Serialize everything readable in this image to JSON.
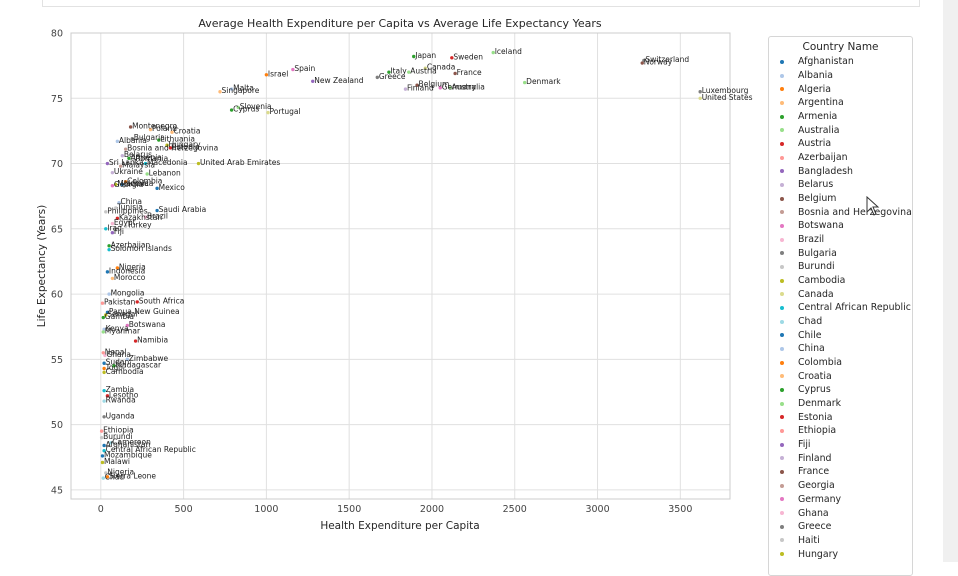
{
  "chart_data": {
    "type": "scatter",
    "title": "Average Health Expenditure per Capita vs Average Life Expectancy Years",
    "xlabel": "Health Expenditure per Capita",
    "ylabel": "Life Expectancy (Years)",
    "xlim": [
      -180,
      3800
    ],
    "ylim": [
      44.3,
      80
    ],
    "xticks": [
      0,
      500,
      1000,
      1500,
      2000,
      2500,
      3000,
      3500
    ],
    "yticks": [
      45,
      50,
      55,
      60,
      65,
      70,
      75,
      80
    ],
    "grid": true,
    "legend_title": "Country Name",
    "legend_position": "right",
    "legend": [
      {
        "name": "Afghanistan",
        "color": "#1f77b4"
      },
      {
        "name": "Albania",
        "color": "#aec7e8"
      },
      {
        "name": "Algeria",
        "color": "#ff7f0e"
      },
      {
        "name": "Argentina",
        "color": "#ffbb78"
      },
      {
        "name": "Armenia",
        "color": "#2ca02c"
      },
      {
        "name": "Australia",
        "color": "#98df8a"
      },
      {
        "name": "Austria",
        "color": "#d62728"
      },
      {
        "name": "Azerbaijan",
        "color": "#ff9896"
      },
      {
        "name": "Bangladesh",
        "color": "#9467bd"
      },
      {
        "name": "Belarus",
        "color": "#c5b0d5"
      },
      {
        "name": "Belgium",
        "color": "#8c564b"
      },
      {
        "name": "Bosnia and Herzegovina",
        "color": "#c49c94"
      },
      {
        "name": "Botswana",
        "color": "#e377c2"
      },
      {
        "name": "Brazil",
        "color": "#f7b6d2"
      },
      {
        "name": "Bulgaria",
        "color": "#7f7f7f"
      },
      {
        "name": "Burundi",
        "color": "#c7c7c7"
      },
      {
        "name": "Cambodia",
        "color": "#bcbd22"
      },
      {
        "name": "Canada",
        "color": "#dbdb8d"
      },
      {
        "name": "Central African Republic",
        "color": "#17becf"
      },
      {
        "name": "Chad",
        "color": "#9edae5"
      },
      {
        "name": "Chile",
        "color": "#1f77b4"
      },
      {
        "name": "China",
        "color": "#aec7e8"
      },
      {
        "name": "Colombia",
        "color": "#ff7f0e"
      },
      {
        "name": "Croatia",
        "color": "#ffbb78"
      },
      {
        "name": "Cyprus",
        "color": "#2ca02c"
      },
      {
        "name": "Denmark",
        "color": "#98df8a"
      },
      {
        "name": "Estonia",
        "color": "#d62728"
      },
      {
        "name": "Ethiopia",
        "color": "#ff9896"
      },
      {
        "name": "Fiji",
        "color": "#9467bd"
      },
      {
        "name": "Finland",
        "color": "#c5b0d5"
      },
      {
        "name": "France",
        "color": "#8c564b"
      },
      {
        "name": "Georgia",
        "color": "#c49c94"
      },
      {
        "name": "Germany",
        "color": "#e377c2"
      },
      {
        "name": "Ghana",
        "color": "#f7b6d2"
      },
      {
        "name": "Greece",
        "color": "#7f7f7f"
      },
      {
        "name": "Haiti",
        "color": "#c7c7c7"
      },
      {
        "name": "Hungary",
        "color": "#bcbd22"
      }
    ],
    "points": [
      {
        "label": "Japan",
        "x": 1890,
        "y": 78.2,
        "color": "#2ca02c"
      },
      {
        "label": "Sweden",
        "x": 2120,
        "y": 78.1,
        "color": "#d62728"
      },
      {
        "label": "Iceland",
        "x": 2370,
        "y": 78.5,
        "color": "#98df8a"
      },
      {
        "label": "Switzerland",
        "x": 3280,
        "y": 77.9,
        "color": "#7f7f7f"
      },
      {
        "label": "Norway",
        "x": 3270,
        "y": 77.7,
        "color": "#8c564b"
      },
      {
        "label": "Canada",
        "x": 1960,
        "y": 77.3,
        "color": "#dbdb8d"
      },
      {
        "label": "Italy",
        "x": 1740,
        "y": 77.0,
        "color": "#2ca02c"
      },
      {
        "label": "Austria",
        "x": 1860,
        "y": 77.0,
        "color": "#98df8a"
      },
      {
        "label": "Spain",
        "x": 1160,
        "y": 77.2,
        "color": "#e377c2"
      },
      {
        "label": "France",
        "x": 2140,
        "y": 76.9,
        "color": "#8c564b"
      },
      {
        "label": "Israel",
        "x": 1000,
        "y": 76.8,
        "color": "#ff7f0e"
      },
      {
        "label": "Greece",
        "x": 1670,
        "y": 76.6,
        "color": "#7f7f7f"
      },
      {
        "label": "New Zealand",
        "x": 1280,
        "y": 76.3,
        "color": "#9467bd"
      },
      {
        "label": "Denmark",
        "x": 2560,
        "y": 76.2,
        "color": "#98df8a"
      },
      {
        "label": "Belgium",
        "x": 1910,
        "y": 76.0,
        "color": "#8c564b"
      },
      {
        "label": "Finland",
        "x": 1840,
        "y": 75.7,
        "color": "#c5b0d5"
      },
      {
        "label": "Germany",
        "x": 2050,
        "y": 75.8,
        "color": "#e377c2"
      },
      {
        "label": "Australia",
        "x": 2110,
        "y": 75.8,
        "color": "#98df8a"
      },
      {
        "label": "Luxembourg",
        "x": 3620,
        "y": 75.5,
        "color": "#7f7f7f"
      },
      {
        "label": "United States",
        "x": 3620,
        "y": 75.0,
        "color": "#dbdb8d"
      },
      {
        "label": "Malta",
        "x": 790,
        "y": 75.7,
        "color": "#aec7e8"
      },
      {
        "label": "Singapore",
        "x": 720,
        "y": 75.5,
        "color": "#ffbb78"
      },
      {
        "label": "Slovenia",
        "x": 830,
        "y": 74.3,
        "color": "#98df8a"
      },
      {
        "label": "Cyprus",
        "x": 790,
        "y": 74.1,
        "color": "#2ca02c"
      },
      {
        "label": "Portugal",
        "x": 1010,
        "y": 73.9,
        "color": "#dbdb8d"
      },
      {
        "label": "Montenegro",
        "x": 180,
        "y": 72.8,
        "color": "#8c564b"
      },
      {
        "label": "Poland",
        "x": 300,
        "y": 72.6,
        "color": "#ffbb78"
      },
      {
        "label": "Croatia",
        "x": 430,
        "y": 72.4,
        "color": "#ffbb78"
      },
      {
        "label": "Bulgaria",
        "x": 190,
        "y": 71.9,
        "color": "#7f7f7f"
      },
      {
        "label": "Lithuania",
        "x": 350,
        "y": 71.8,
        "color": "#2ca02c"
      },
      {
        "label": "Albania",
        "x": 100,
        "y": 71.7,
        "color": "#aec7e8"
      },
      {
        "label": "Hungary",
        "x": 400,
        "y": 71.4,
        "color": "#bcbd22"
      },
      {
        "label": "Estonia",
        "x": 420,
        "y": 71.2,
        "color": "#d62728"
      },
      {
        "label": "Bosnia and Herzegovina",
        "x": 150,
        "y": 71.1,
        "color": "#c49c94"
      },
      {
        "label": "Belarus",
        "x": 130,
        "y": 70.6,
        "color": "#c5b0d5"
      },
      {
        "label": "Armenia",
        "x": 170,
        "y": 70.4,
        "color": "#2ca02c"
      },
      {
        "label": "Romania",
        "x": 200,
        "y": 70.3,
        "color": "#c7c7c7"
      },
      {
        "label": "Sri Lanka",
        "x": 40,
        "y": 70.0,
        "color": "#9467bd"
      },
      {
        "label": "Macedonia",
        "x": 270,
        "y": 70.0,
        "color": "#17becf"
      },
      {
        "label": "United Arab Emirates",
        "x": 590,
        "y": 70.0,
        "color": "#bcbd22"
      },
      {
        "label": "Malaysia",
        "x": 120,
        "y": 69.8,
        "color": "#c49c94"
      },
      {
        "label": "Ukraine",
        "x": 70,
        "y": 69.3,
        "color": "#c5b0d5"
      },
      {
        "label": "Lebanon",
        "x": 280,
        "y": 69.2,
        "color": "#98df8a"
      },
      {
        "label": "Colombia",
        "x": 150,
        "y": 68.6,
        "color": "#ff7f0e"
      },
      {
        "label": "Moldova",
        "x": 90,
        "y": 68.4,
        "color": "#bcbd22"
      },
      {
        "label": "Jamaica",
        "x": 130,
        "y": 68.4,
        "color": "#1f77b4"
      },
      {
        "label": "Georgia",
        "x": 70,
        "y": 68.3,
        "color": "#e377c2"
      },
      {
        "label": "Mexico",
        "x": 340,
        "y": 68.1,
        "color": "#1f77b4"
      },
      {
        "label": "China",
        "x": 110,
        "y": 67.0,
        "color": "#aec7e8"
      },
      {
        "label": "Tunisia",
        "x": 90,
        "y": 66.6,
        "color": "#c7c7c7"
      },
      {
        "label": "Saudi Arabia",
        "x": 340,
        "y": 66.4,
        "color": "#1f77b4"
      },
      {
        "label": "Philippines",
        "x": 30,
        "y": 66.3,
        "color": "#c7c7c7"
      },
      {
        "label": "Kazakhstan",
        "x": 100,
        "y": 65.8,
        "color": "#d62728"
      },
      {
        "label": "Brazil",
        "x": 270,
        "y": 65.9,
        "color": "#f7b6d2"
      },
      {
        "label": "Egypt",
        "x": 70,
        "y": 65.4,
        "color": "#f7b6d2"
      },
      {
        "label": "Turkey",
        "x": 150,
        "y": 65.2,
        "color": "#c7c7c7"
      },
      {
        "label": "Iraq",
        "x": 30,
        "y": 65.0,
        "color": "#17becf"
      },
      {
        "label": "Fiji",
        "x": 70,
        "y": 64.7,
        "color": "#9467bd"
      },
      {
        "label": "Azerbaijan",
        "x": 50,
        "y": 63.7,
        "color": "#2ca02c"
      },
      {
        "label": "Solomon Islands",
        "x": 50,
        "y": 63.4,
        "color": "#17becf"
      },
      {
        "label": "Nigeria",
        "x": 100,
        "y": 62.0,
        "color": "#ff7f0e"
      },
      {
        "label": "Indonesia",
        "x": 40,
        "y": 61.7,
        "color": "#1f77b4"
      },
      {
        "label": "Morocco",
        "x": 70,
        "y": 61.2,
        "color": "#ffbb78"
      },
      {
        "label": "Mongolia",
        "x": 50,
        "y": 60.0,
        "color": "#aec7e8"
      },
      {
        "label": "Pakistan",
        "x": 10,
        "y": 59.3,
        "color": "#ff9896"
      },
      {
        "label": "South Africa",
        "x": 220,
        "y": 59.4,
        "color": "#d62728"
      },
      {
        "label": "Papua New Guinea",
        "x": 40,
        "y": 58.6,
        "color": "#1f77b4"
      },
      {
        "label": "Senegal",
        "x": 30,
        "y": 58.4,
        "color": "#bcbd22"
      },
      {
        "label": "Gambia",
        "x": 15,
        "y": 58.2,
        "color": "#2ca02c"
      },
      {
        "label": "Botswana",
        "x": 160,
        "y": 57.6,
        "color": "#e377c2"
      },
      {
        "label": "Kenya",
        "x": 20,
        "y": 57.3,
        "color": "#aec7e8"
      },
      {
        "label": "Myanmar",
        "x": 15,
        "y": 57.1,
        "color": "#98df8a"
      },
      {
        "label": "Namibia",
        "x": 210,
        "y": 56.4,
        "color": "#d62728"
      },
      {
        "label": "Nepal",
        "x": 15,
        "y": 55.5,
        "color": "#ff9896"
      },
      {
        "label": "Ghana",
        "x": 25,
        "y": 55.3,
        "color": "#f7b6d2"
      },
      {
        "label": "Zimbabwe",
        "x": 160,
        "y": 55.0,
        "color": "#aec7e8"
      },
      {
        "label": "Sudan",
        "x": 20,
        "y": 54.7,
        "color": "#1f77b4"
      },
      {
        "label": "Madagascar",
        "x": 80,
        "y": 54.5,
        "color": "#2ca02c"
      },
      {
        "label": "Togo",
        "x": 20,
        "y": 54.3,
        "color": "#ff7f0e"
      },
      {
        "label": "Cambodia",
        "x": 20,
        "y": 54.0,
        "color": "#bcbd22"
      },
      {
        "label": "Zambia",
        "x": 20,
        "y": 52.6,
        "color": "#17becf"
      },
      {
        "label": "Lesotho",
        "x": 40,
        "y": 52.2,
        "color": "#d62728"
      },
      {
        "label": "Rwanda",
        "x": 20,
        "y": 51.8,
        "color": "#9edae5"
      },
      {
        "label": "Uganda",
        "x": 20,
        "y": 50.6,
        "color": "#7f7f7f"
      },
      {
        "label": "Ethiopia",
        "x": 5,
        "y": 49.5,
        "color": "#ff9896"
      },
      {
        "label": "Burundi",
        "x": 5,
        "y": 49.0,
        "color": "#c7c7c7"
      },
      {
        "label": "Cameroon",
        "x": 60,
        "y": 48.6,
        "color": "#9edae5"
      },
      {
        "label": "Afghanistan",
        "x": 20,
        "y": 48.4,
        "color": "#1f77b4"
      },
      {
        "label": "Central African Republic",
        "x": 20,
        "y": 48.0,
        "color": "#17becf"
      },
      {
        "label": "Mozambique",
        "x": 10,
        "y": 47.6,
        "color": "#1f77b4"
      },
      {
        "label": "Malawi",
        "x": 10,
        "y": 47.1,
        "color": "#bcbd22"
      },
      {
        "label": "Nigeria",
        "x": 30,
        "y": 46.3,
        "color": "#c7c7c7"
      },
      {
        "label": "Sierra Leone",
        "x": 40,
        "y": 46.0,
        "color": "#ff7f0e"
      },
      {
        "label": "Chad",
        "x": 15,
        "y": 45.9,
        "color": "#9edae5"
      }
    ]
  }
}
